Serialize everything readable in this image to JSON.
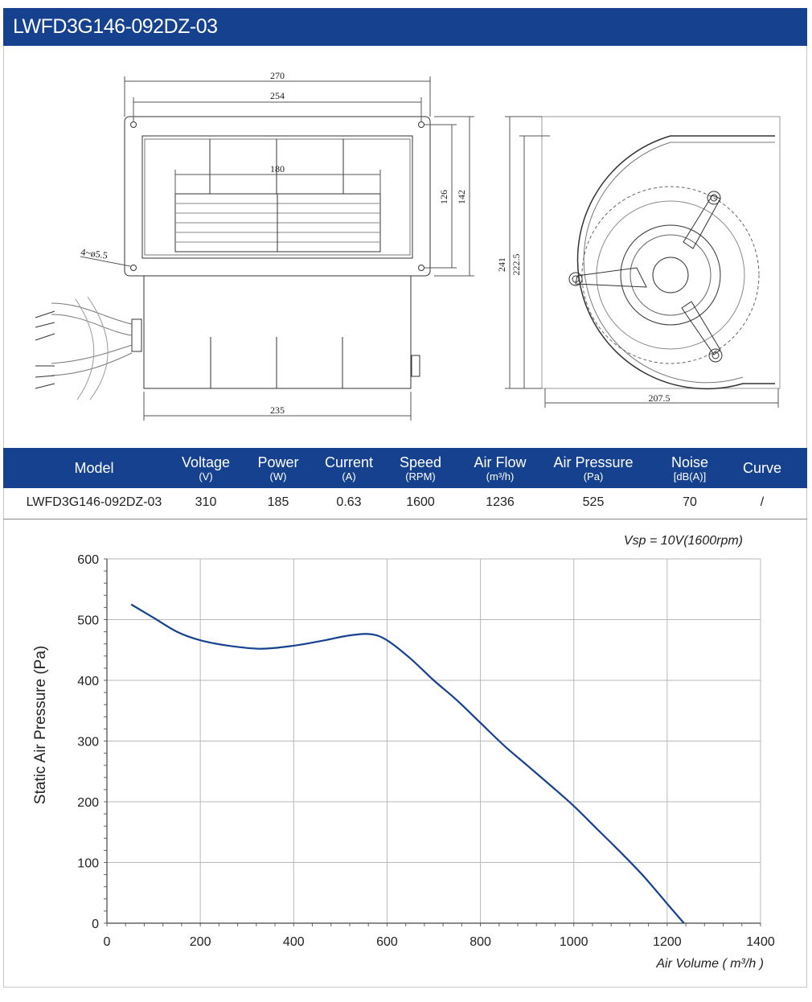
{
  "title": "LWFD3G146-092DZ-03",
  "drawing": {
    "dims": [
      "270",
      "254",
      "180",
      "126",
      "142",
      "4~ø5.5",
      "235",
      "241",
      "222.5",
      "207.5"
    ]
  },
  "specs": {
    "headers": [
      {
        "label": "Model",
        "unit": ""
      },
      {
        "label": "Voltage",
        "unit": "(V)"
      },
      {
        "label": "Power",
        "unit": "(W)"
      },
      {
        "label": "Current",
        "unit": "(A)"
      },
      {
        "label": "Speed",
        "unit": "(RPM)"
      },
      {
        "label": "Air Flow",
        "unit": "(m³/h)"
      },
      {
        "label": "Air Pressure",
        "unit": "(Pa)"
      },
      {
        "label": "Noise",
        "unit": "[dB(A)]"
      },
      {
        "label": "Curve",
        "unit": ""
      }
    ],
    "row": [
      "LWFD3G146-092DZ-03",
      "310",
      "185",
      "0.63",
      "1600",
      "1236",
      "525",
      "70",
      "/"
    ]
  },
  "chart_data": {
    "type": "line",
    "annotation": "Vsp = 10V(1600rpm)",
    "xlabel": "Air Volume ( m³/h )",
    "ylabel": "Static Air Pressure  (Pa)",
    "xlim": [
      0,
      1400
    ],
    "ylim": [
      0,
      600
    ],
    "xticks": [
      0,
      200,
      400,
      600,
      800,
      1000,
      1200,
      1400
    ],
    "yticks": [
      0,
      100,
      200,
      300,
      400,
      500,
      600
    ],
    "grid": true,
    "line_color": "#15418e",
    "series": [
      {
        "x": [
          52,
          100,
          150,
          200,
          260,
          330,
          400,
          460,
          520,
          565,
          600,
          650,
          700,
          750,
          800,
          850,
          900,
          950,
          1000,
          1050,
          1100,
          1150,
          1200,
          1236
        ],
        "y": [
          525,
          503,
          480,
          466,
          457,
          452,
          457,
          465,
          474,
          476,
          466,
          436,
          400,
          367,
          330,
          293,
          260,
          227,
          193,
          155,
          117,
          77,
          32,
          0
        ]
      }
    ]
  }
}
